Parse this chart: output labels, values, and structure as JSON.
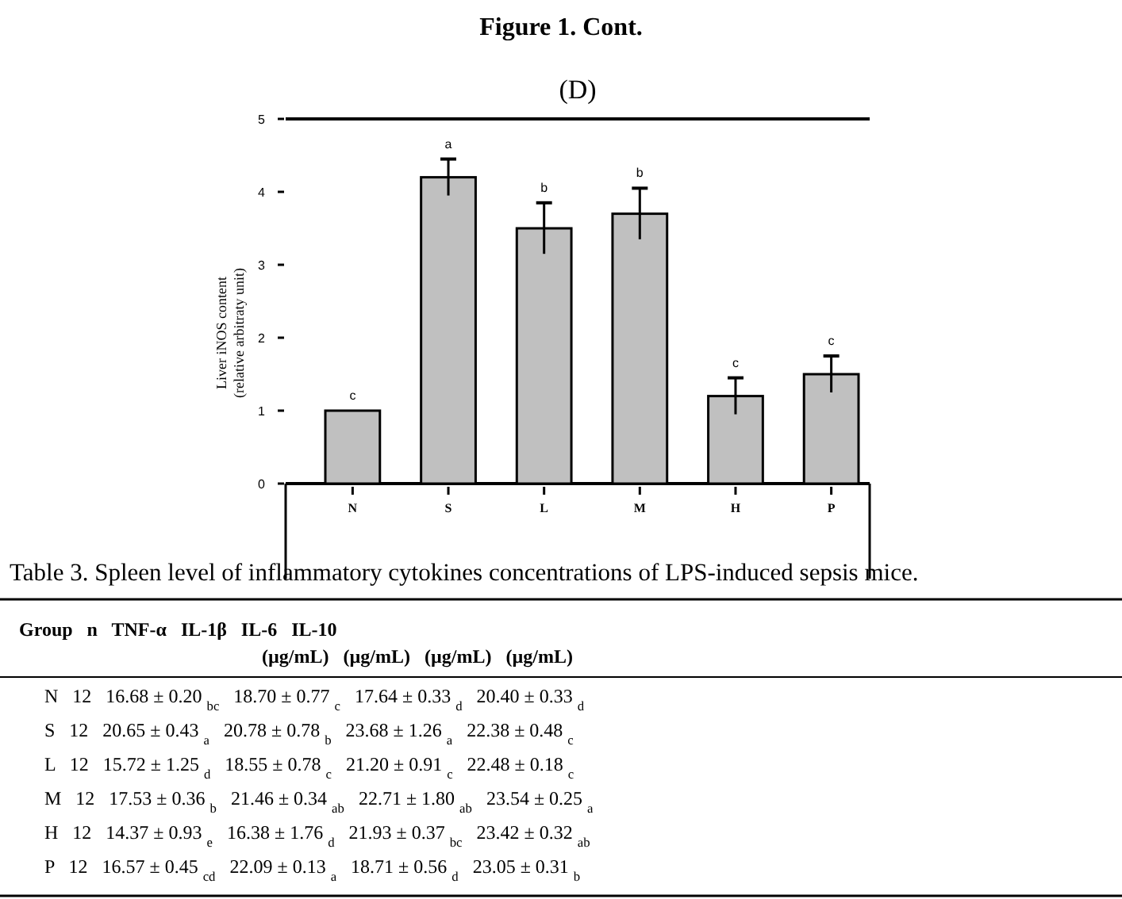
{
  "chart_data": {
    "type": "bar",
    "title": "(D)",
    "ylabel": "Liver iNOS content\n(relative arbitraty unit)",
    "categories": [
      "N",
      "S",
      "L",
      "M",
      "H",
      "P"
    ],
    "values": [
      1.0,
      4.2,
      3.5,
      3.7,
      1.2,
      1.5
    ],
    "errors": [
      null,
      0.25,
      0.35,
      0.35,
      0.25,
      0.25
    ],
    "color": "#c0c0c0",
    "ylim": [
      0,
      5
    ],
    "yticks": [
      0,
      1,
      2,
      3,
      4,
      5
    ],
    "grid": false,
    "value_labels": [
      "c",
      "a",
      "b",
      "b",
      "c",
      "c"
    ],
    "annotations": [
      "Figure 1. Cont.",
      "Table 3. Spleen level of inflammatory cytokines concentrations of LPS-induced sepsis mice.",
      "Group   n   TNF-α   IL-1β   IL-6   IL-10",
      "(µg/mL)   (µg/mL)   (µg/mL)   (µg/mL)",
      "N   12   16.68 ± 0.20 $_{bc}$   18.70 ± 0.77 $_{c}$   17.64 ± 0.33 $_{d}$   20.40 ± 0.33 $_{d}$",
      "S   12   20.65 ± 0.43 $_{a}$   20.78 ± 0.78 $_{b}$   23.68 ± 1.26 $_{a}$   22.38 ± 0.48 $_{c}$",
      "L   12   15.72 ± 1.25 $_{d}$   18.55 ± 0.78 $_{c}$   21.20 ± 0.91 $_{c}$   22.48 ± 0.18 $_{c}$",
      "M   12   17.53 ± 0.36 $_{b}$   21.46 ± 0.34 $_{ab}$   22.71 ± 1.80 $_{ab}$   23.54 ± 0.25 $_{a}$",
      "H   12   14.37 ± 0.93 $_{e}$   16.38 ± 1.76 $_{d}$   21.93 ± 0.37 $_{bc}$   23.42 ± 0.32 $_{ab}$",
      "P   12   16.57 ± 0.45 $_{cd}$   22.09 ± 0.13 $_{a}$   18.71 ± 0.56 $_{d}$   23.05 ± 0.31 $_{b}$"
    ]
  }
}
